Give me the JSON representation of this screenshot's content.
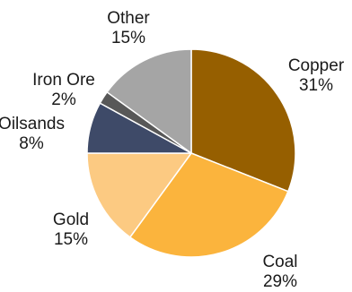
{
  "chart_data": {
    "type": "pie",
    "slices": [
      {
        "label": "Copper",
        "value": 31,
        "display": "31%",
        "color": "#965F00"
      },
      {
        "label": "Coal",
        "value": 29,
        "display": "29%",
        "color": "#FBB43D"
      },
      {
        "label": "Gold",
        "value": 15,
        "display": "15%",
        "color": "#FCCA82"
      },
      {
        "label": "Oilsands",
        "value": 8,
        "display": "8%",
        "color": "#3E4A68"
      },
      {
        "label": "Iron Ore",
        "value": 2,
        "display": "2%",
        "color": "#585858"
      },
      {
        "label": "Other",
        "value": 15,
        "display": "15%",
        "color": "#A5A5A5"
      }
    ],
    "start_angle_deg": 0,
    "direction": "clockwise",
    "legend": "none",
    "slice_border_color": "#ffffff"
  }
}
